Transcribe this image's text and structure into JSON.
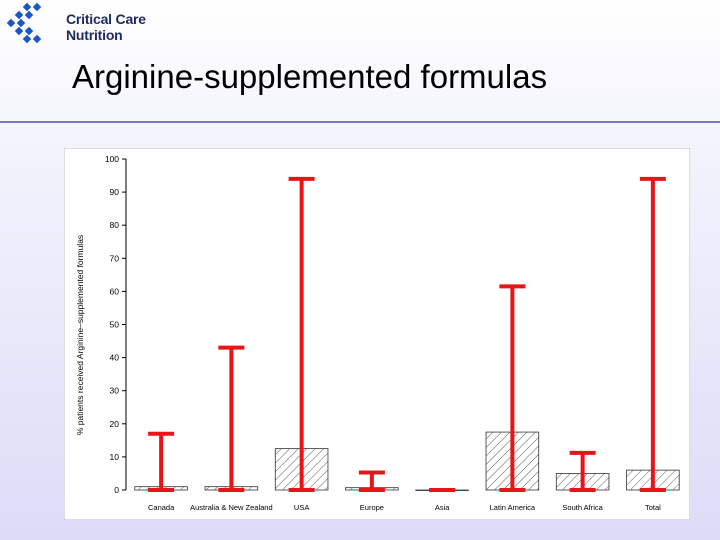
{
  "logo": {
    "line1": "Critical Care",
    "line2": "Nutrition"
  },
  "slide": {
    "title": "Arginine-supplemented formulas"
  },
  "colors": {
    "accent": "#e8141a",
    "logo_blue": "#1a56c8",
    "rule": "#7777c8"
  },
  "chart_data": {
    "type": "bar",
    "ylabel": "% patients received Arginine–supplemented formulas",
    "xlabel": "",
    "ylim": [
      0,
      100
    ],
    "yticks": [
      0,
      10,
      20,
      30,
      40,
      50,
      60,
      70,
      80,
      90,
      100
    ],
    "categories": [
      "Canada",
      "Australia & New Zealand",
      "USA",
      "Europe",
      "Asia",
      "Latin America",
      "South Africa",
      "Total"
    ],
    "values": [
      1,
      1,
      12.5,
      0.7,
      0,
      17.5,
      5,
      6
    ],
    "error_upper": [
      17,
      43,
      94,
      5.3,
      0,
      61.5,
      11.2,
      94
    ],
    "error_lower": [
      0,
      0,
      0,
      0,
      0,
      0,
      0,
      0
    ],
    "bar_pattern": "diagonal hatch",
    "grid": false,
    "legend": "none"
  }
}
